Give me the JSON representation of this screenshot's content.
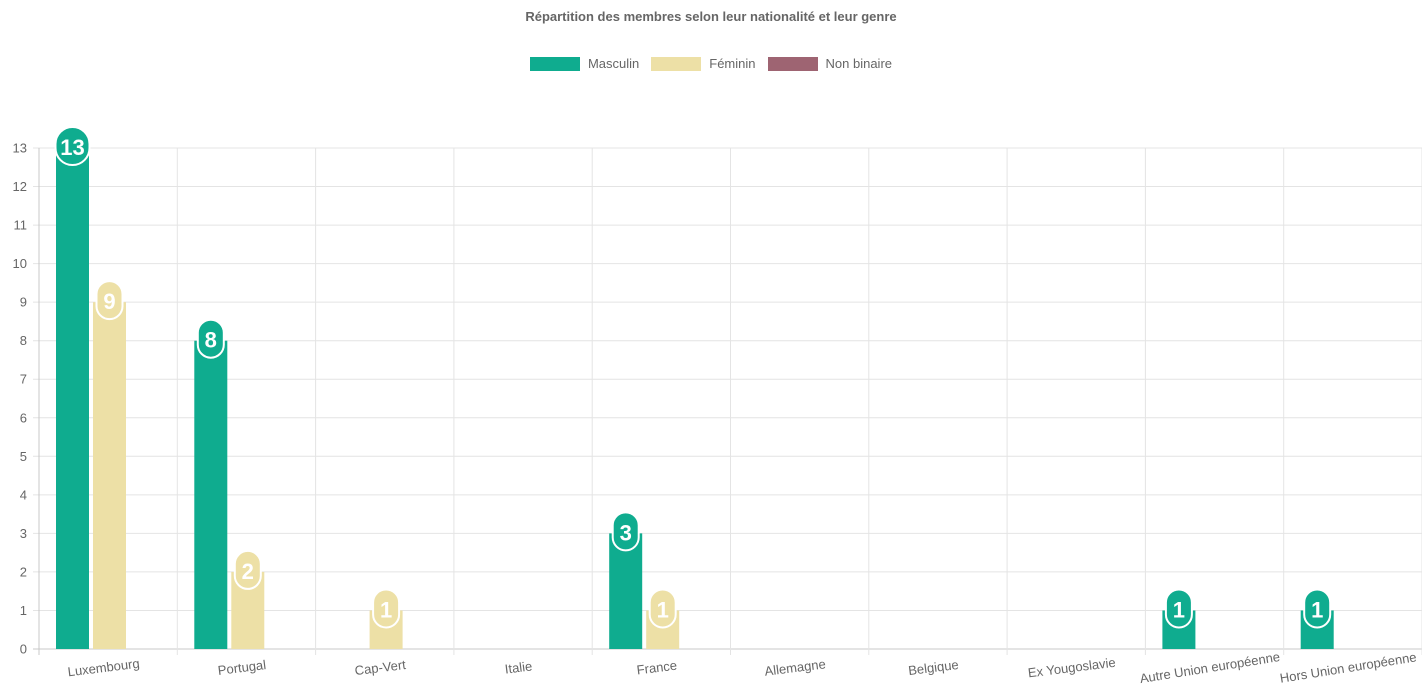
{
  "chart_data": {
    "type": "bar",
    "title": "Répartition des membres selon leur nationalité et leur genre",
    "xlabel": "",
    "ylabel": "",
    "categories": [
      "Luxembourg",
      "Portugal",
      "Cap-Vert",
      "Italie",
      "France",
      "Allemagne",
      "Belgique",
      "Ex Yougoslavie",
      "Autre Union européenne",
      "Hors Union européenne"
    ],
    "series": [
      {
        "name": "Masculin",
        "color": "#0fac8f",
        "values": [
          13,
          8,
          0,
          0,
          3,
          0,
          0,
          0,
          1,
          1
        ]
      },
      {
        "name": "Féminin",
        "color": "#ede0a6",
        "values": [
          9,
          2,
          1,
          0,
          1,
          0,
          0,
          0,
          0,
          0
        ]
      },
      {
        "name": "Non binaire",
        "color": "#9e6472",
        "values": [
          0,
          0,
          0,
          0,
          0,
          0,
          0,
          0,
          0,
          0
        ]
      }
    ],
    "ylim": [
      0,
      13
    ],
    "y_ticks": [
      0,
      1,
      2,
      3,
      4,
      5,
      6,
      7,
      8,
      9,
      10,
      11,
      12,
      13
    ],
    "grid": true,
    "legend_position": "top",
    "data_labels": true
  }
}
